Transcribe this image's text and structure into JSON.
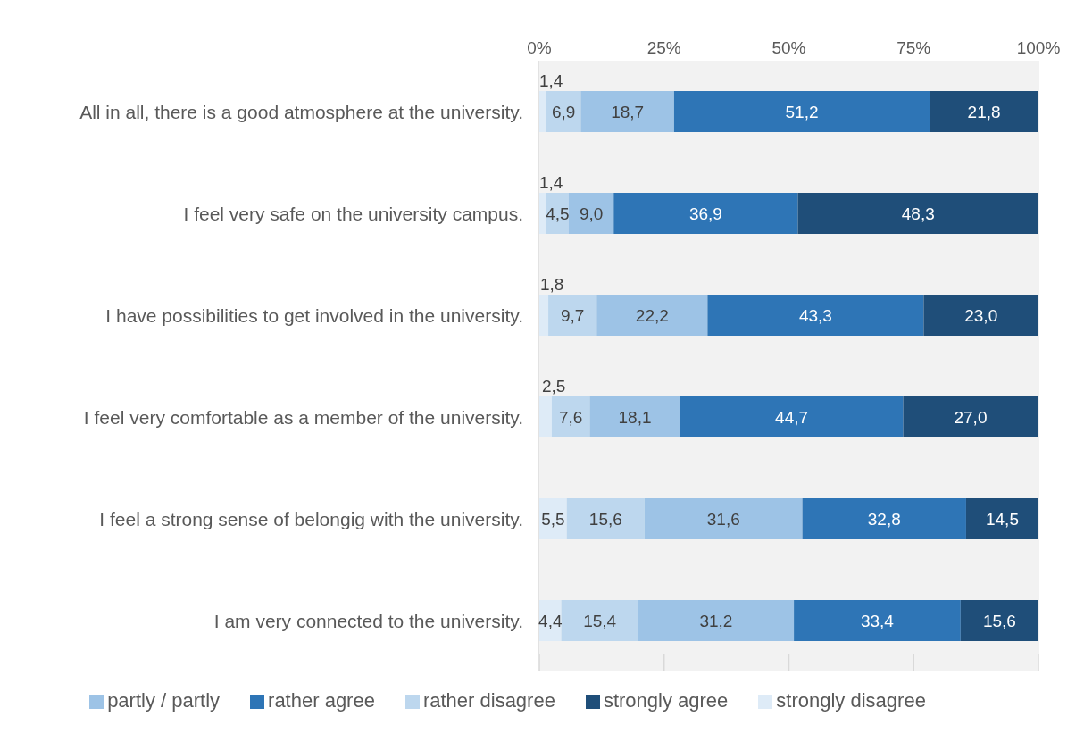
{
  "chart_data": {
    "type": "bar",
    "orientation": "horizontal",
    "stacked": true,
    "categories": [
      "All in all, there is a good atmosphere at the university.",
      "I feel very safe on the university campus.",
      "I have possibilities to get involved in the university.",
      "I feel very comfortable as a member of the university.",
      "I feel a strong sense of belongig with the university.",
      "I am very connected to the university."
    ],
    "series": [
      {
        "name": "strongly disagree",
        "color": "#deebf7",
        "values": [
          1.4,
          1.4,
          1.8,
          2.5,
          5.5,
          4.4
        ],
        "value_labels": [
          "1,4",
          "1,4",
          "1,8",
          "2,5",
          "5,5",
          "4,4"
        ]
      },
      {
        "name": "rather disagree",
        "color": "#bdd7ee",
        "values": [
          6.9,
          4.5,
          9.7,
          7.6,
          15.6,
          15.4
        ],
        "value_labels": [
          "6,9",
          "4,5",
          "9,7",
          "7,6",
          "15,6",
          "15,4"
        ]
      },
      {
        "name": "partly / partly",
        "color": "#9dc3e6",
        "values": [
          18.7,
          9.0,
          22.2,
          18.1,
          31.6,
          31.2
        ],
        "value_labels": [
          "18,7",
          "9,0",
          "22,2",
          "18,1",
          "31,6",
          "31,2"
        ]
      },
      {
        "name": "rather agree",
        "color": "#2e75b6",
        "values": [
          51.2,
          36.9,
          43.3,
          44.7,
          32.8,
          33.4
        ],
        "value_labels": [
          "51,2",
          "36,9",
          "43,3",
          "44,7",
          "32,8",
          "33,4"
        ]
      },
      {
        "name": "strongly agree",
        "color": "#1f4e79",
        "values": [
          21.8,
          48.3,
          23.0,
          27.0,
          14.5,
          15.6
        ],
        "value_labels": [
          "21,8",
          "48,3",
          "23,0",
          "27,0",
          "14,5",
          "15,6"
        ]
      }
    ],
    "xlim": [
      0,
      100
    ],
    "xticks": [
      {
        "value": 0,
        "label": "0%"
      },
      {
        "value": 25,
        "label": "25%"
      },
      {
        "value": 50,
        "label": "50%"
      },
      {
        "value": 75,
        "label": "75%"
      },
      {
        "value": 100,
        "label": "100%"
      }
    ],
    "grid": "x",
    "legend": "bottom"
  }
}
